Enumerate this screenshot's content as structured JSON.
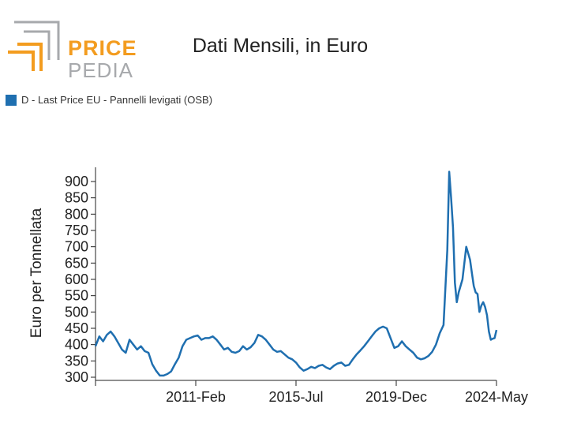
{
  "header": {
    "logo_text_top": "PRICE",
    "logo_text_bottom": "PEDIA",
    "logo_colors": {
      "orange": "#f39c1f",
      "gray": "#a7a9ac"
    }
  },
  "chart_data": {
    "type": "line",
    "title": "Dati Mensili, in Euro",
    "ylabel": "Euro per Tonnellata",
    "xlabel": "",
    "ylim": [
      300,
      950
    ],
    "yticks": [
      300,
      350,
      400,
      450,
      500,
      550,
      600,
      650,
      700,
      750,
      800,
      850,
      900
    ],
    "x_range": [
      "2006-09",
      "2024-05"
    ],
    "xticks": [
      {
        "date": "2011-02",
        "label": "2011-Feb"
      },
      {
        "date": "2015-07",
        "label": "2015-Jul"
      },
      {
        "date": "2019-12",
        "label": "2019-Dec"
      },
      {
        "date": "2024-05",
        "label": "2024-May"
      }
    ],
    "grid": false,
    "legend_position": "top-left",
    "series": [
      {
        "name": "D - Last Price EU - Pannelli levigati (OSB)",
        "color": "#1f6fb0",
        "points": [
          [
            "2006-09",
            395
          ],
          [
            "2006-11",
            425
          ],
          [
            "2007-01",
            410
          ],
          [
            "2007-03",
            430
          ],
          [
            "2007-05",
            440
          ],
          [
            "2007-07",
            425
          ],
          [
            "2007-09",
            405
          ],
          [
            "2007-11",
            385
          ],
          [
            "2008-01",
            375
          ],
          [
            "2008-03",
            415
          ],
          [
            "2008-05",
            400
          ],
          [
            "2008-07",
            385
          ],
          [
            "2008-09",
            395
          ],
          [
            "2008-11",
            380
          ],
          [
            "2009-01",
            375
          ],
          [
            "2009-03",
            340
          ],
          [
            "2009-05",
            320
          ],
          [
            "2009-07",
            305
          ],
          [
            "2009-09",
            305
          ],
          [
            "2009-11",
            310
          ],
          [
            "2010-01",
            318
          ],
          [
            "2010-03",
            340
          ],
          [
            "2010-05",
            360
          ],
          [
            "2010-07",
            395
          ],
          [
            "2010-09",
            415
          ],
          [
            "2010-11",
            420
          ],
          [
            "2011-01",
            425
          ],
          [
            "2011-03",
            428
          ],
          [
            "2011-05",
            415
          ],
          [
            "2011-07",
            420
          ],
          [
            "2011-09",
            420
          ],
          [
            "2011-11",
            425
          ],
          [
            "2012-01",
            415
          ],
          [
            "2012-03",
            400
          ],
          [
            "2012-05",
            385
          ],
          [
            "2012-07",
            390
          ],
          [
            "2012-09",
            378
          ],
          [
            "2012-11",
            375
          ],
          [
            "2013-01",
            380
          ],
          [
            "2013-03",
            395
          ],
          [
            "2013-05",
            385
          ],
          [
            "2013-07",
            392
          ],
          [
            "2013-09",
            405
          ],
          [
            "2013-11",
            430
          ],
          [
            "2014-01",
            425
          ],
          [
            "2014-03",
            415
          ],
          [
            "2014-05",
            400
          ],
          [
            "2014-07",
            385
          ],
          [
            "2014-09",
            378
          ],
          [
            "2014-11",
            380
          ],
          [
            "2015-01",
            370
          ],
          [
            "2015-03",
            360
          ],
          [
            "2015-05",
            355
          ],
          [
            "2015-07",
            345
          ],
          [
            "2015-09",
            330
          ],
          [
            "2015-11",
            320
          ],
          [
            "2016-01",
            325
          ],
          [
            "2016-03",
            332
          ],
          [
            "2016-05",
            328
          ],
          [
            "2016-07",
            335
          ],
          [
            "2016-09",
            338
          ],
          [
            "2016-11",
            330
          ],
          [
            "2017-01",
            325
          ],
          [
            "2017-03",
            335
          ],
          [
            "2017-05",
            342
          ],
          [
            "2017-07",
            345
          ],
          [
            "2017-09",
            335
          ],
          [
            "2017-11",
            338
          ],
          [
            "2018-01",
            355
          ],
          [
            "2018-03",
            370
          ],
          [
            "2018-05",
            382
          ],
          [
            "2018-07",
            395
          ],
          [
            "2018-09",
            410
          ],
          [
            "2018-11",
            425
          ],
          [
            "2019-01",
            440
          ],
          [
            "2019-03",
            450
          ],
          [
            "2019-05",
            455
          ],
          [
            "2019-07",
            450
          ],
          [
            "2019-09",
            420
          ],
          [
            "2019-11",
            390
          ],
          [
            "2020-01",
            395
          ],
          [
            "2020-03",
            410
          ],
          [
            "2020-05",
            395
          ],
          [
            "2020-07",
            385
          ],
          [
            "2020-09",
            375
          ],
          [
            "2020-11",
            360
          ],
          [
            "2021-01",
            355
          ],
          [
            "2021-03",
            358
          ],
          [
            "2021-05",
            365
          ],
          [
            "2021-07",
            378
          ],
          [
            "2021-09",
            400
          ],
          [
            "2021-11",
            435
          ],
          [
            "2022-01",
            460
          ],
          [
            "2022-03",
            690
          ],
          [
            "2022-04",
            930
          ],
          [
            "2022-05",
            850
          ],
          [
            "2022-06",
            760
          ],
          [
            "2022-07",
            590
          ],
          [
            "2022-08",
            530
          ],
          [
            "2022-09",
            560
          ],
          [
            "2022-11",
            600
          ],
          [
            "2022-12",
            650
          ],
          [
            "2023-01",
            700
          ],
          [
            "2023-02",
            680
          ],
          [
            "2023-03",
            660
          ],
          [
            "2023-04",
            620
          ],
          [
            "2023-05",
            580
          ],
          [
            "2023-06",
            560
          ],
          [
            "2023-07",
            555
          ],
          [
            "2023-08",
            500
          ],
          [
            "2023-09",
            520
          ],
          [
            "2023-10",
            530
          ],
          [
            "2023-11",
            515
          ],
          [
            "2023-12",
            490
          ],
          [
            "2024-01",
            440
          ],
          [
            "2024-02",
            415
          ],
          [
            "2024-03",
            418
          ],
          [
            "2024-04",
            420
          ],
          [
            "2024-05",
            445
          ]
        ]
      }
    ]
  }
}
